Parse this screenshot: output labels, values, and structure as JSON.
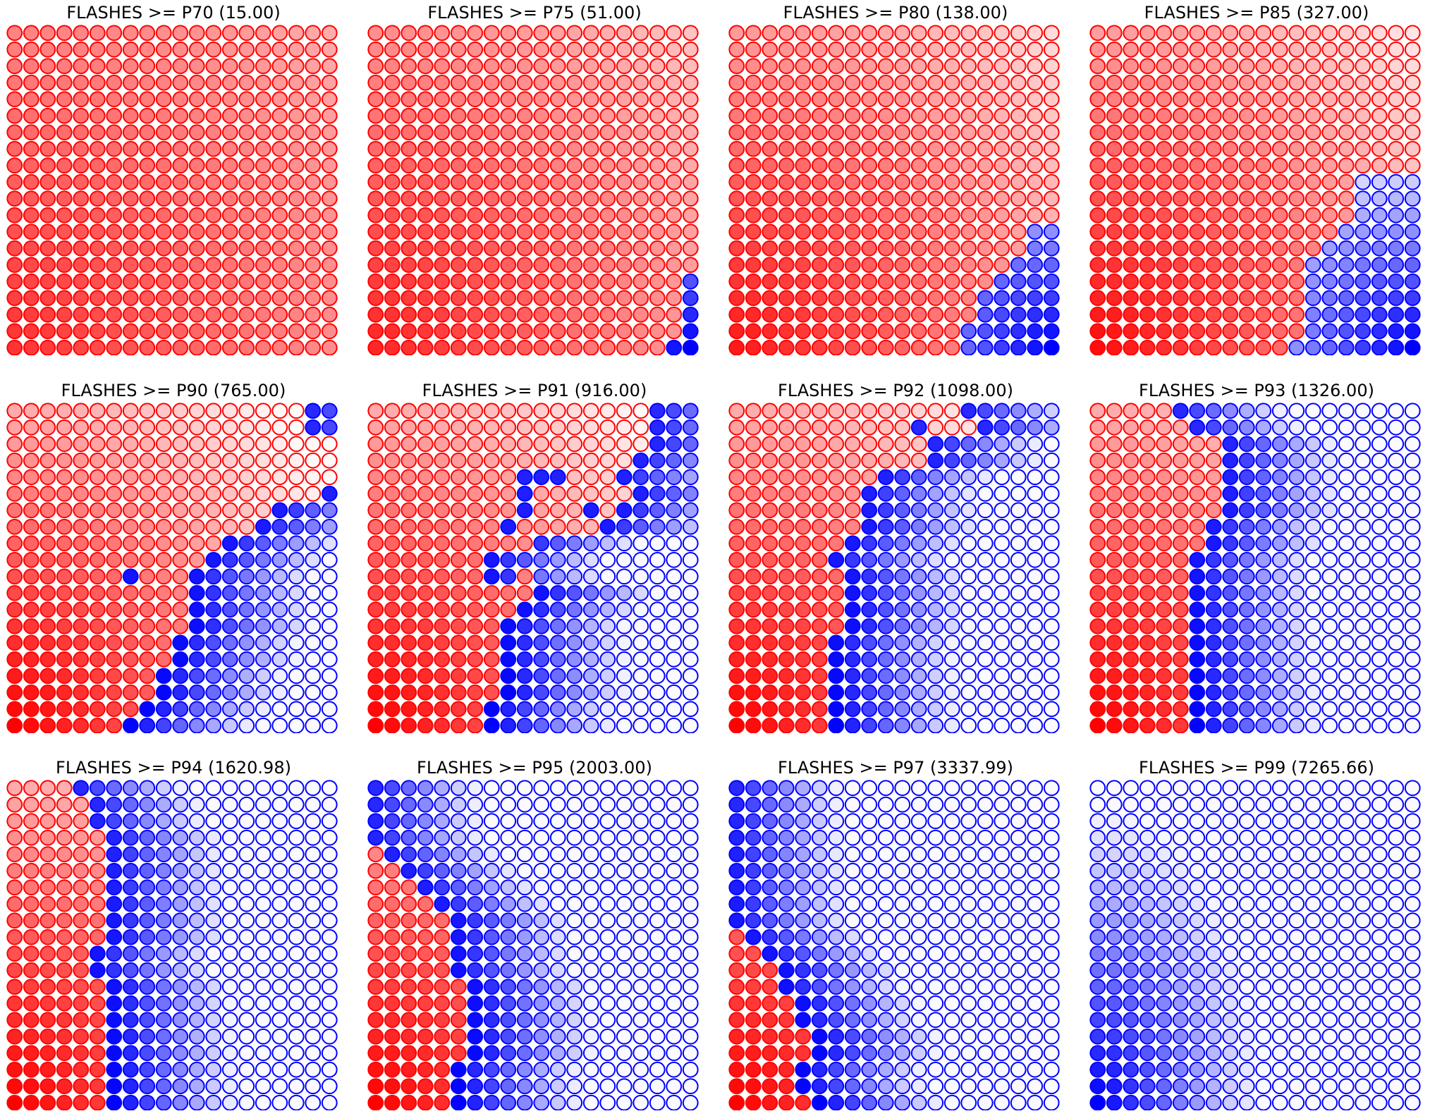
{
  "figure": {
    "panel_titles": [
      "FLASHES >= P70 (15.00)",
      "FLASHES >= P75 (51.00)",
      "FLASHES >= P80 (138.00)",
      "FLASHES >= P85 (327.00)",
      "FLASHES >= P90 (765.00)",
      "FLASHES >= P91 (916.00)",
      "FLASHES >= P92 (1098.00)",
      "FLASHES >= P93 (1326.00)",
      "FLASHES >= P94 (1620.98)",
      "FLASHES >= P95 (2003.00)",
      "FLASHES >= P97 (3337.99)",
      "FLASHES >= P99 (7265.66)"
    ]
  },
  "chart_data": {
    "type": "heatmap",
    "layout": {
      "rows": 3,
      "cols": 4
    },
    "grid": {
      "rows": 20,
      "cols": 20
    },
    "colors": {
      "positive": "#ff0000",
      "negative": "#0000ff",
      "empty": "#ffffff"
    },
    "grid_lines": false,
    "axes_visible": false,
    "value_encoding": "sign = color (positive red, negative blue), magnitude = fill opacity 0..1",
    "panels": [
      {
        "title": "FLASHES >= P70 (15.00)",
        "blue_start_col_by_row": [
          20,
          20,
          20,
          20,
          20,
          20,
          20,
          20,
          20,
          20,
          20,
          20,
          20,
          20,
          20,
          20,
          20,
          20,
          20,
          20
        ],
        "blue_extra": [],
        "red_extra": [],
        "pattern": "red",
        "base": 0.8,
        "cx": 0,
        "cy": 19,
        "spread": 0.5
      },
      {
        "title": "FLASHES >= P75 (51.00)",
        "blue_start_col_by_row": [
          20,
          20,
          20,
          20,
          20,
          20,
          20,
          20,
          20,
          20,
          20,
          20,
          20,
          20,
          20,
          19,
          19,
          19,
          19,
          18
        ],
        "blue_extra": [],
        "red_extra": [],
        "pattern": "red",
        "base": 0.85,
        "cx": 0,
        "cy": 19,
        "spread": 0.65
      },
      {
        "title": "FLASHES >= P80 (138.00)",
        "blue_start_col_by_row": [
          20,
          20,
          20,
          20,
          20,
          20,
          20,
          20,
          20,
          20,
          20,
          20,
          18,
          18,
          17,
          16,
          15,
          15,
          14,
          14
        ],
        "blue_extra": [],
        "red_extra": [],
        "pattern": "red",
        "base": 0.9,
        "cx": 0,
        "cy": 19,
        "spread": 0.8
      },
      {
        "title": "FLASHES >= P85 (327.00)",
        "blue_start_col_by_row": [
          20,
          20,
          20,
          20,
          20,
          20,
          20,
          20,
          20,
          16,
          16,
          16,
          15,
          14,
          13,
          13,
          13,
          13,
          13,
          12
        ],
        "blue_extra": [],
        "red_extra": [],
        "pattern": "red",
        "base": 0.95,
        "cx": 0,
        "cy": 19,
        "spread": 0.9
      },
      {
        "title": "FLASHES >= P90 (765.00)",
        "blue_start_col_by_row": [
          18,
          18,
          20,
          20,
          20,
          19,
          16,
          15,
          13,
          12,
          11,
          11,
          11,
          11,
          10,
          10,
          9,
          9,
          8,
          7
        ],
        "blue_extra": [
          [
            10,
            7
          ]
        ],
        "red_extra": [],
        "pattern": "mix",
        "blue_cx": 19,
        "blue_cy": 19
      },
      {
        "title": "FLASHES >= P91 (916.00)",
        "blue_start_col_by_row": [
          17,
          17,
          17,
          16,
          15,
          16,
          15,
          14,
          9,
          7,
          7,
          10,
          9,
          8,
          8,
          8,
          8,
          8,
          7,
          7
        ],
        "blue_extra": [
          [
            4,
            9
          ],
          [
            4,
            10
          ],
          [
            4,
            11
          ],
          [
            5,
            9
          ],
          [
            6,
            9
          ],
          [
            6,
            13
          ],
          [
            7,
            8
          ]
        ],
        "red_extra": [
          [
            5,
            11
          ],
          [
            5,
            12
          ],
          [
            6,
            10
          ],
          [
            6,
            11
          ],
          [
            8,
            9
          ],
          [
            10,
            9
          ]
        ],
        "pattern": "mix",
        "blue_cx": 19,
        "blue_cy": 19
      },
      {
        "title": "FLASHES >= P92 (1098.00)",
        "blue_start_col_by_row": [
          14,
          15,
          12,
          12,
          9,
          8,
          8,
          8,
          7,
          6,
          7,
          7,
          7,
          7,
          6,
          6,
          6,
          6,
          6,
          6
        ],
        "blue_extra": [
          [
            1,
            11
          ]
        ],
        "red_extra": [],
        "pattern": "mix",
        "blue_cx": 19,
        "blue_cy": 19
      },
      {
        "title": "FLASHES >= P93 (1326.00)",
        "blue_start_col_by_row": [
          5,
          6,
          8,
          8,
          8,
          8,
          8,
          7,
          7,
          6,
          6,
          6,
          6,
          6,
          6,
          6,
          6,
          6,
          6,
          6
        ],
        "blue_extra": [],
        "red_extra": [],
        "pattern": "mix",
        "blue_cx": 19,
        "blue_cy": 19
      },
      {
        "title": "FLASHES >= P94 (1620.98)",
        "blue_start_col_by_row": [
          4,
          5,
          5,
          6,
          6,
          6,
          6,
          6,
          6,
          6,
          5,
          5,
          6,
          6,
          6,
          6,
          6,
          6,
          6,
          6
        ],
        "blue_extra": [],
        "red_extra": [],
        "pattern": "mix",
        "blue_cx": 19,
        "blue_cy": 19
      },
      {
        "title": "FLASHES >= P95 (2003.00)",
        "blue_start_col_by_row": [
          0,
          0,
          0,
          0,
          1,
          2,
          3,
          4,
          5,
          5,
          5,
          5,
          6,
          6,
          6,
          6,
          6,
          5,
          5,
          5
        ],
        "blue_extra": [],
        "red_extra": [],
        "pattern": "mix",
        "blue_cx": 19,
        "blue_cy": 19
      },
      {
        "title": "FLASHES >= P97 (3337.99)",
        "blue_start_col_by_row": [
          0,
          0,
          0,
          0,
          0,
          0,
          0,
          0,
          0,
          1,
          2,
          3,
          3,
          4,
          4,
          5,
          5,
          4,
          4,
          5
        ],
        "blue_extra": [],
        "red_extra": [],
        "pattern": "mix",
        "blue_cx": 19,
        "blue_cy": 19
      },
      {
        "title": "FLASHES >= P99 (7265.66)",
        "blue_start_col_by_row": [
          0,
          0,
          0,
          0,
          0,
          0,
          0,
          0,
          0,
          0,
          0,
          0,
          0,
          0,
          0,
          0,
          0,
          0,
          0,
          0
        ],
        "blue_extra": [],
        "red_extra": [],
        "pattern": "blue",
        "blue_cx": 0,
        "blue_cy": 19
      }
    ]
  }
}
